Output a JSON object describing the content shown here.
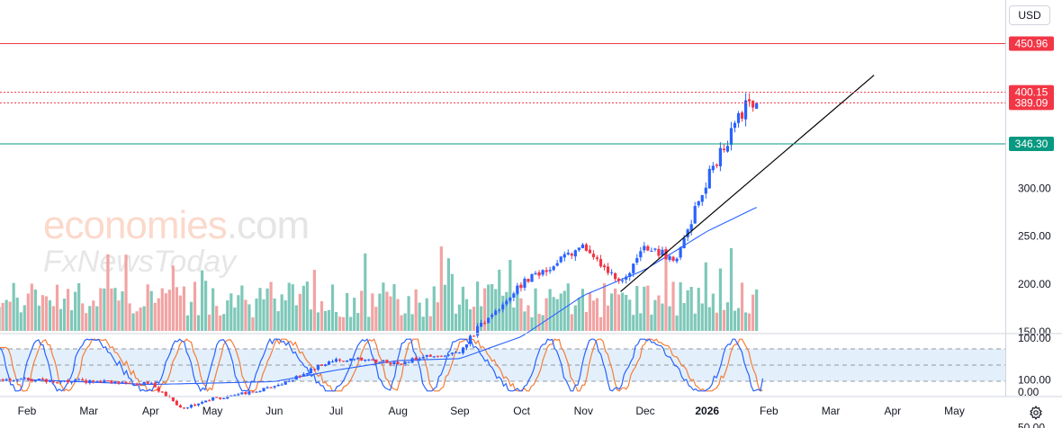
{
  "currency": "USD",
  "watermark": {
    "brand": "economies",
    "suffix": ".com",
    "partner": "FxNewsToday"
  },
  "chart_data": {
    "type": "candlestick",
    "x_tick_labels": [
      "Feb",
      "Mar",
      "Apr",
      "May",
      "Jun",
      "Jul",
      "Aug",
      "Sep",
      "Oct",
      "Nov",
      "Dec",
      "2026",
      "Feb",
      "Mar",
      "Apr",
      "May"
    ],
    "y_tick_labels": [
      "300.00",
      "250.00",
      "200.00",
      "150.00",
      "100.00",
      "50.00"
    ],
    "ylim": [
      40,
      470
    ],
    "price_lines": [
      {
        "label": "450.96",
        "value": 450.96,
        "color": "#f23645",
        "style": "solid"
      },
      {
        "label": "400.15",
        "value": 400.15,
        "color": "#f23645",
        "style": "dotted"
      },
      {
        "label": "389.09",
        "value": 389.09,
        "color": "#f23645",
        "style": "dotted"
      },
      {
        "label": "346.30",
        "value": 346.3,
        "color": "#089981",
        "style": "solid"
      }
    ],
    "price_path": [
      {
        "month": 0,
        "close": 100
      },
      {
        "month": 1,
        "close": 98
      },
      {
        "month": 2,
        "close": 96
      },
      {
        "month": 2.5,
        "close": 70
      },
      {
        "month": 3,
        "close": 80
      },
      {
        "month": 4,
        "close": 92
      },
      {
        "month": 5,
        "close": 122
      },
      {
        "month": 6,
        "close": 118
      },
      {
        "month": 7,
        "close": 130
      },
      {
        "month": 7.3,
        "close": 154
      },
      {
        "month": 8,
        "close": 200
      },
      {
        "month": 9,
        "close": 240
      },
      {
        "month": 9.6,
        "close": 200
      },
      {
        "month": 10,
        "close": 240
      },
      {
        "month": 10.5,
        "close": 225
      },
      {
        "month": 11,
        "close": 310
      },
      {
        "month": 11.7,
        "close": 395
      },
      {
        "month": 11.8,
        "close": 385
      }
    ],
    "moving_average": {
      "color": "#2962ff",
      "values": [
        {
          "month": 0,
          "value": 100
        },
        {
          "month": 2,
          "value": 95
        },
        {
          "month": 4,
          "value": 98
        },
        {
          "month": 5,
          "value": 110
        },
        {
          "month": 6,
          "value": 120
        },
        {
          "month": 7,
          "value": 122
        },
        {
          "month": 8,
          "value": 145
        },
        {
          "month": 9,
          "value": 188
        },
        {
          "month": 10,
          "value": 215
        },
        {
          "month": 11,
          "value": 255
        },
        {
          "month": 11.8,
          "value": 280
        }
      ]
    },
    "trendline": {
      "from": {
        "month": 9.6,
        "value": 192
      },
      "to": {
        "month": 13.7,
        "value": 418
      },
      "color": "#000000"
    },
    "volume": {
      "up_color": "#7ec8b9",
      "down_color": "#f2a3a3",
      "max_month_index": 11.8
    },
    "oscillator": {
      "type": "stochastic",
      "y_tick_labels": [
        "100.00",
        "0.00"
      ],
      "upper_band": 80,
      "lower_band": 20,
      "k_color": "#2962ff",
      "d_color": "#f57c38",
      "band_fill": "#e3f0fb"
    },
    "grid": false
  }
}
